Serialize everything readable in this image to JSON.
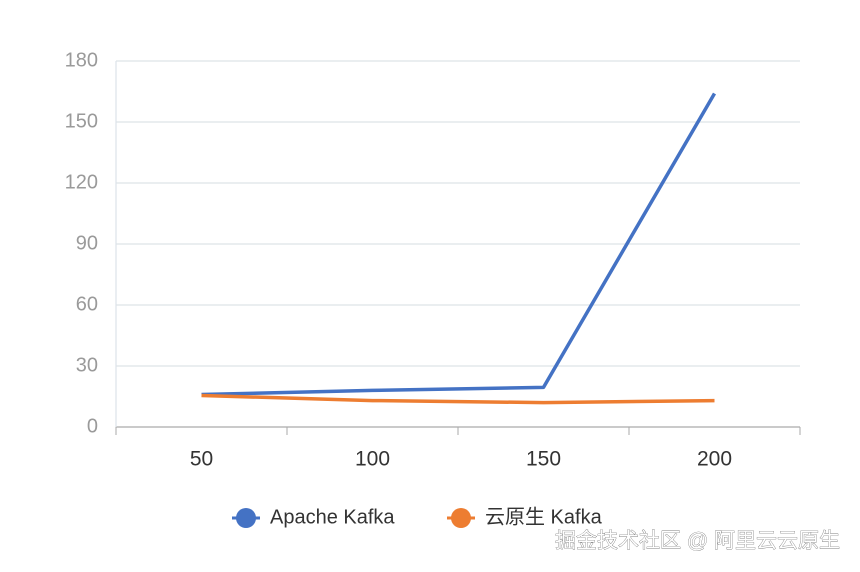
{
  "chart_data": {
    "type": "line",
    "categories": [
      "50",
      "100",
      "150",
      "200"
    ],
    "series": [
      {
        "name": "Apache Kafka",
        "color": "#4472c4",
        "values": [
          16,
          18,
          19.5,
          164
        ]
      },
      {
        "name": "云原生 Kafka",
        "color": "#ed7d31",
        "values": [
          15.5,
          13,
          12,
          13
        ]
      }
    ],
    "ylim": [
      0,
      180
    ],
    "yticks": [
      0,
      30,
      60,
      90,
      120,
      150,
      180
    ],
    "grid": true
  },
  "watermark": "掘金技术社区 @ 阿里云云原生"
}
